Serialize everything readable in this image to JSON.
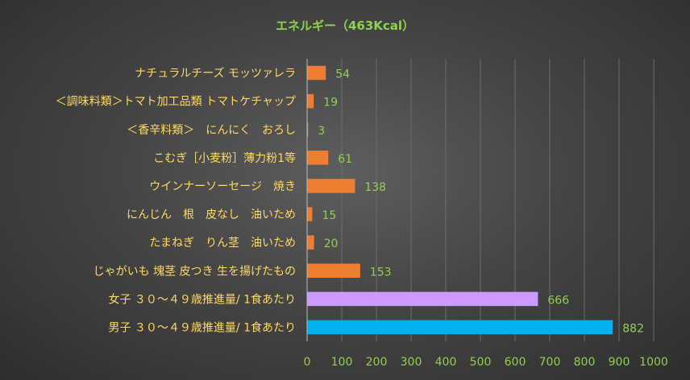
{
  "chart_data": {
    "type": "bar",
    "orientation": "horizontal",
    "title": "エネルギー（463Kcal）",
    "xlabel": "",
    "ylabel": "",
    "xlim": [
      0,
      1000
    ],
    "xticks": [
      0,
      100,
      200,
      300,
      400,
      500,
      600,
      700,
      800,
      900,
      1000
    ],
    "grid": true,
    "legend": "none",
    "categories": [
      "ナチュラルチーズ モッツァレラ",
      "＜調味料類＞トマト加工品類 トマトケチャップ",
      "＜香辛料類＞　にんにく　おろし",
      "こむぎ［小麦粉］薄力粉1等",
      "ウインナーソーセージ　焼き",
      "にんじん　根　皮なし　油いため",
      "たまねぎ　りん茎　油いため",
      "じゃがいも 塊茎 皮つき 生を揚げたもの",
      "女子 ３０～４９歳推進量/ 1食あたり",
      "男子 ３０～４９歳推進量/ 1食あたり"
    ],
    "values": [
      54,
      19,
      3,
      61,
      138,
      15,
      20,
      153,
      666,
      882
    ],
    "colors": [
      "#ed7d31",
      "#ed7d31",
      "#ed7d31",
      "#ed7d31",
      "#ed7d31",
      "#ed7d31",
      "#ed7d31",
      "#ed7d31",
      "#cc99ff",
      "#00b0f0"
    ]
  }
}
